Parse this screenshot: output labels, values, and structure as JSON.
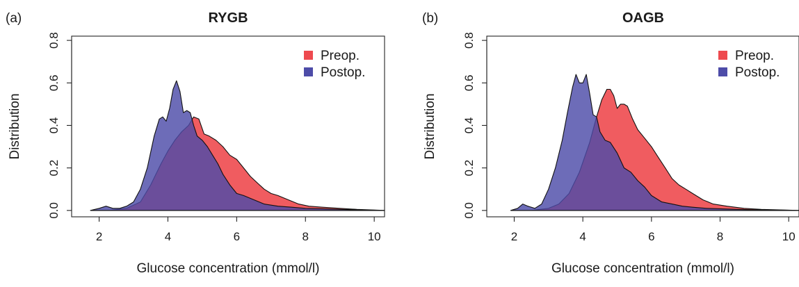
{
  "figure": {
    "panels": [
      {
        "letter": "(a)",
        "title": "RYGB"
      },
      {
        "letter": "(b)",
        "title": "OAGB"
      }
    ]
  },
  "chart_data": [
    {
      "type": "area",
      "panel_label": "(a)",
      "title": "RYGB",
      "xlabel": "Glucose concentration (mmol/l)",
      "ylabel": "Distribution",
      "xlim": [
        1.2,
        10.3
      ],
      "ylim": [
        -0.03,
        0.82
      ],
      "xticks": [
        2,
        4,
        6,
        8,
        10
      ],
      "yticks": [
        0.0,
        0.2,
        0.4,
        0.6,
        0.8
      ],
      "ytick_labels": [
        "0.0",
        "0.2",
        "0.4",
        "0.6",
        "0.8"
      ],
      "legend_position": "top-right",
      "grid": false,
      "series": [
        {
          "name": "Preop.",
          "color": "#ee4a4f",
          "x": [
            1.75,
            2.3,
            2.8,
            3.2,
            3.5,
            3.8,
            4.0,
            4.2,
            4.4,
            4.6,
            4.75,
            4.9,
            5.05,
            5.2,
            5.4,
            5.6,
            5.8,
            6.0,
            6.2,
            6.4,
            6.6,
            6.8,
            7.0,
            7.2,
            7.5,
            7.8,
            8.1,
            8.5,
            9.0,
            9.5,
            10.3
          ],
          "y": [
            0.0,
            0.0,
            0.01,
            0.04,
            0.12,
            0.22,
            0.28,
            0.33,
            0.37,
            0.4,
            0.44,
            0.43,
            0.36,
            0.35,
            0.33,
            0.3,
            0.26,
            0.24,
            0.2,
            0.16,
            0.13,
            0.1,
            0.08,
            0.07,
            0.05,
            0.03,
            0.02,
            0.015,
            0.01,
            0.005,
            0.0
          ]
        },
        {
          "name": "Postop.",
          "color": "#4d4ca8",
          "x": [
            1.75,
            2.0,
            2.2,
            2.4,
            2.6,
            2.8,
            3.0,
            3.2,
            3.4,
            3.6,
            3.75,
            3.85,
            3.95,
            4.05,
            4.15,
            4.25,
            4.35,
            4.45,
            4.55,
            4.65,
            4.75,
            4.85,
            5.0,
            5.15,
            5.3,
            5.45,
            5.6,
            5.8,
            6.0,
            6.2,
            6.5,
            6.8,
            7.2,
            7.6,
            8.0,
            8.5,
            9.0,
            9.5,
            10.3
          ],
          "y": [
            0.0,
            0.01,
            0.02,
            0.01,
            0.01,
            0.02,
            0.04,
            0.1,
            0.2,
            0.35,
            0.43,
            0.44,
            0.42,
            0.48,
            0.57,
            0.61,
            0.56,
            0.46,
            0.47,
            0.46,
            0.4,
            0.35,
            0.33,
            0.3,
            0.26,
            0.22,
            0.17,
            0.12,
            0.08,
            0.07,
            0.05,
            0.03,
            0.02,
            0.015,
            0.01,
            0.008,
            0.005,
            0.003,
            0.0
          ]
        }
      ]
    },
    {
      "type": "area",
      "panel_label": "(b)",
      "title": "OAGB",
      "xlabel": "Glucose concentration (mmol/l)",
      "ylabel": "Distribution",
      "xlim": [
        1.2,
        10.3
      ],
      "ylim": [
        -0.03,
        0.82
      ],
      "xticks": [
        2,
        4,
        6,
        8,
        10
      ],
      "yticks": [
        0.0,
        0.2,
        0.4,
        0.6,
        0.8
      ],
      "ytick_labels": [
        "0.0",
        "0.2",
        "0.4",
        "0.6",
        "0.8"
      ],
      "legend_position": "top-right",
      "grid": false,
      "series": [
        {
          "name": "Preop.",
          "color": "#ee4a4f",
          "x": [
            1.9,
            2.5,
            3.0,
            3.3,
            3.6,
            3.9,
            4.2,
            4.4,
            4.55,
            4.7,
            4.8,
            4.9,
            5.0,
            5.1,
            5.2,
            5.3,
            5.45,
            5.6,
            5.8,
            6.0,
            6.2,
            6.4,
            6.6,
            6.8,
            7.0,
            7.2,
            7.5,
            7.8,
            8.2,
            8.7,
            9.2,
            10.3
          ],
          "y": [
            0.0,
            0.0,
            0.01,
            0.03,
            0.08,
            0.18,
            0.32,
            0.44,
            0.52,
            0.57,
            0.57,
            0.54,
            0.48,
            0.5,
            0.5,
            0.49,
            0.43,
            0.38,
            0.34,
            0.3,
            0.25,
            0.2,
            0.15,
            0.12,
            0.1,
            0.08,
            0.05,
            0.03,
            0.02,
            0.01,
            0.005,
            0.0
          ]
        },
        {
          "name": "Postop.",
          "color": "#4d4ca8",
          "x": [
            1.9,
            2.1,
            2.25,
            2.4,
            2.6,
            2.8,
            3.0,
            3.2,
            3.4,
            3.55,
            3.7,
            3.8,
            3.9,
            4.0,
            4.1,
            4.2,
            4.3,
            4.4,
            4.5,
            4.65,
            4.8,
            5.0,
            5.2,
            5.4,
            5.6,
            5.8,
            6.0,
            6.3,
            6.6,
            6.9,
            7.2,
            7.6,
            8.0,
            8.5,
            9.0,
            9.5,
            10.3
          ],
          "y": [
            0.0,
            0.01,
            0.03,
            0.02,
            0.01,
            0.03,
            0.1,
            0.2,
            0.33,
            0.46,
            0.58,
            0.64,
            0.6,
            0.6,
            0.64,
            0.55,
            0.45,
            0.44,
            0.37,
            0.33,
            0.32,
            0.27,
            0.2,
            0.18,
            0.14,
            0.11,
            0.07,
            0.04,
            0.03,
            0.02,
            0.015,
            0.01,
            0.008,
            0.005,
            0.003,
            0.002,
            0.0
          ]
        }
      ]
    }
  ]
}
